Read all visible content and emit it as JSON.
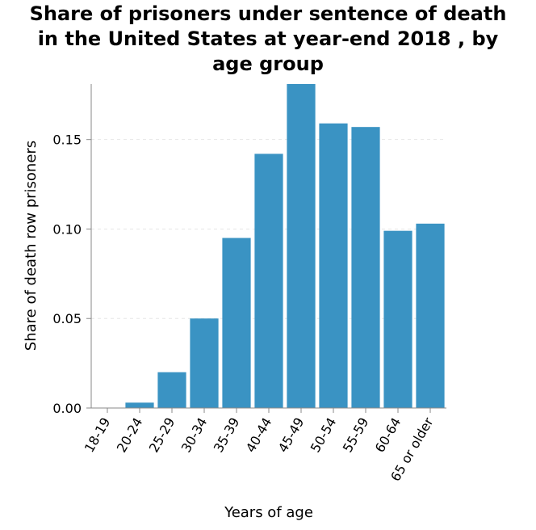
{
  "chart_data": {
    "type": "bar",
    "title_lines": [
      "Share of prisoners under sentence of death",
      "in the United States at year-end 2018 , by",
      "age group"
    ],
    "xlabel": "Years of age",
    "ylabel": "Share of death row prisoners",
    "categories": [
      "18-19",
      "20-24",
      "25-29",
      "30-34",
      "35-39",
      "40-44",
      "45-49",
      "50-54",
      "55-59",
      "60-64",
      "65 or older"
    ],
    "values": [
      0.0,
      0.003,
      0.02,
      0.05,
      0.095,
      0.142,
      0.181,
      0.159,
      0.157,
      0.099,
      0.103
    ],
    "yticks": [
      "0.00",
      "0.05",
      "0.10",
      "0.15"
    ],
    "ytick_values": [
      0,
      0.05,
      0.1,
      0.15
    ],
    "ylim": [
      0,
      0.181
    ],
    "grid": true,
    "color": "#3a93c3"
  }
}
